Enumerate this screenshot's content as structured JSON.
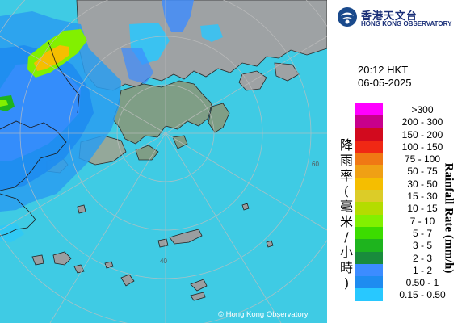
{
  "branding": {
    "org_name_cn": "香港天文台",
    "org_name_en": "HONG KONG OBSERVATORY",
    "copyright": "© Hong Kong Observatory"
  },
  "timestamp": {
    "time": "20:12 HKT",
    "date": "06-05-2025"
  },
  "legend": {
    "title_cn": "降雨率(毫米/小時)",
    "title_en": "Rainfall Rate (mm/h)",
    "classes": [
      {
        "label": ">300",
        "color": "#ff00ff"
      },
      {
        "label": "200 - 300",
        "color": "#c8008c"
      },
      {
        "label": "150 - 200",
        "color": "#d20a1e"
      },
      {
        "label": "100 - 150",
        "color": "#f02814"
      },
      {
        "label": "75 - 100",
        "color": "#f07814"
      },
      {
        "label": "50 - 75",
        "color": "#f0a014"
      },
      {
        "label": "30 - 50",
        "color": "#f5be00"
      },
      {
        "label": "15 - 30",
        "color": "#dccc28"
      },
      {
        "label": "10 - 15",
        "color": "#b4dc00"
      },
      {
        "label": "7 - 10",
        "color": "#82f000"
      },
      {
        "label": "5 - 7",
        "color": "#3cdc00"
      },
      {
        "label": "3 - 5",
        "color": "#1eb41e"
      },
      {
        "label": "2 - 3",
        "color": "#198c3c"
      },
      {
        "label": "1 - 2",
        "color": "#3c8cff"
      },
      {
        "label": "0.50 - 1",
        "color": "#1e8cf0"
      },
      {
        "label": "0.15 - 0.50",
        "color": "#28c8ff"
      }
    ]
  },
  "map": {
    "range_labels": [
      "60",
      "40"
    ],
    "sea_color": "#40cfe6"
  }
}
